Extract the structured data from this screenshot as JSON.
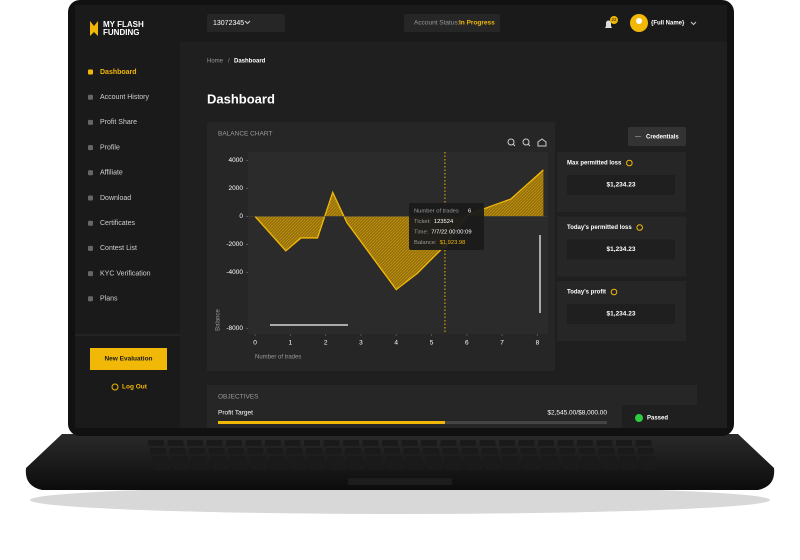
{
  "brand": {
    "line1": "MY FLASH",
    "line2": "FUNDING"
  },
  "topbar": {
    "account": "13072345",
    "status_label": "Account Status:",
    "status_value": "In Progress",
    "notifications": "22",
    "user": "{Full Name}"
  },
  "sidebar": {
    "items": [
      "Dashboard",
      "Account History",
      "Profit Share",
      "Profile",
      "Affiliate",
      "Download",
      "Certificates",
      "Contest List",
      "KYC Verification",
      "Plans"
    ],
    "button": "New Evaluation",
    "logout": "Log Out"
  },
  "breadcrumb": {
    "home": "Home",
    "separator": "/",
    "current": "Dashboard"
  },
  "page_title": "Dashboard",
  "balance_chart": {
    "type": "area",
    "title": "BALANCE CHART",
    "y_label": "Balance",
    "x_label": "Number of trades",
    "color": "#f2b807",
    "x": [
      0,
      0.87,
      1.3,
      1.77,
      2.2,
      2.6,
      4.0,
      4.6,
      5.38,
      6.03,
      6.76,
      7.24,
      8.17
    ],
    "values": [
      0,
      -2460,
      -1540,
      -1540,
      1720,
      -430,
      -5230,
      -4060,
      -2090,
      120,
      800,
      1230,
      3320
    ],
    "xlim": [
      -0.2,
      8.3
    ],
    "ylim": [
      -8400,
      4600
    ],
    "xticks": [
      0,
      1,
      2,
      3,
      4,
      5,
      6,
      7,
      8
    ],
    "yticks": [
      4000,
      2000,
      0,
      -2000,
      -4000,
      -8000
    ],
    "tooltip": {
      "trades_label": "Number of trades",
      "trades": "6",
      "ticket_label": "Ticket:",
      "ticket": "123524",
      "time_label": "Time:",
      "time": "7/7/22 00:00:09",
      "balance_label": "Balance:",
      "balance": "$1,923.98"
    }
  },
  "credentials_button": "Credentials",
  "stats": [
    {
      "label": "Max permitted loss",
      "value": "$1,234.23"
    },
    {
      "label": "Today's permitted loss",
      "value": "$1,234.23"
    },
    {
      "label": "Today's profit",
      "value": "$1,234.23"
    }
  ],
  "objectives": {
    "title": "OBJECTIVES",
    "label": "Profit Target",
    "progress": "$2,545.00/$8,000.00",
    "status": "Passed"
  }
}
